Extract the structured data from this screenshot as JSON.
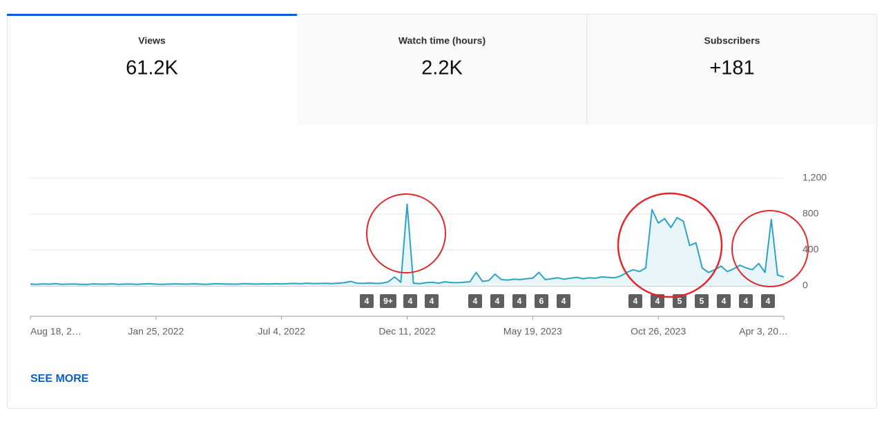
{
  "tabs": [
    {
      "label": "Views",
      "value": "61.2K"
    },
    {
      "label": "Watch time (hours)",
      "value": "2.2K"
    },
    {
      "label": "Subscribers",
      "value": "+181"
    }
  ],
  "chart_data": {
    "type": "line",
    "color": "#2aa3c7",
    "grid": true,
    "categories": [
      "Aug 18, 2…",
      null,
      null,
      null,
      null,
      null,
      null,
      null,
      null,
      null,
      null,
      null,
      null,
      null,
      null,
      null,
      null,
      null,
      null,
      null,
      "Jan 25, 2022",
      null,
      null,
      null,
      null,
      null,
      null,
      null,
      null,
      null,
      null,
      null,
      null,
      null,
      null,
      null,
      null,
      null,
      null,
      null,
      "Jul 4, 2022",
      null,
      null,
      null,
      null,
      null,
      null,
      null,
      null,
      null,
      null,
      null,
      null,
      null,
      null,
      null,
      null,
      null,
      null,
      null,
      "Dec 11, 2022",
      null,
      null,
      null,
      null,
      null,
      null,
      null,
      null,
      null,
      null,
      null,
      null,
      null,
      null,
      null,
      null,
      null,
      null,
      null,
      "May 19, 2023",
      null,
      null,
      null,
      null,
      null,
      null,
      null,
      null,
      null,
      null,
      null,
      null,
      null,
      null,
      null,
      null,
      null,
      null,
      null,
      "Oct 26, 2023",
      null,
      null,
      null,
      null,
      null,
      null,
      null,
      null,
      null,
      null,
      null,
      null,
      null,
      null,
      null,
      null,
      null,
      null,
      null,
      "Apr 3, 20…"
    ],
    "values": [
      20,
      18,
      22,
      19,
      25,
      17,
      20,
      21,
      18,
      16,
      22,
      20,
      19,
      23,
      18,
      20,
      21,
      17,
      22,
      24,
      19,
      18,
      20,
      22,
      21,
      19,
      23,
      20,
      18,
      22,
      24,
      21,
      20,
      19,
      25,
      22,
      20,
      23,
      21,
      24,
      22,
      25,
      28,
      24,
      30,
      26,
      27,
      29,
      25,
      31,
      35,
      50,
      30,
      28,
      32,
      27,
      30,
      45,
      100,
      40,
      910,
      30,
      25,
      35,
      40,
      30,
      45,
      38,
      35,
      40,
      45,
      150,
      50,
      60,
      130,
      70,
      65,
      75,
      70,
      80,
      85,
      150,
      70,
      80,
      90,
      75,
      85,
      95,
      80,
      90,
      85,
      100,
      95,
      90,
      110,
      150,
      180,
      160,
      200,
      850,
      700,
      750,
      650,
      760,
      720,
      450,
      480,
      200,
      150,
      180,
      220,
      160,
      190,
      230,
      200,
      180,
      250,
      150,
      740,
      120,
      100
    ],
    "ylim": [
      0,
      1200
    ],
    "yticks": [
      0,
      400,
      800,
      {
        "value": 1200,
        "label": "1,200"
      }
    ],
    "annotations": [
      "4",
      "9+",
      "4",
      "4",
      "4",
      "4",
      "4",
      "6",
      "4",
      "4",
      "4",
      "5",
      "5",
      "4",
      "4",
      "4"
    ]
  },
  "see_more": "SEE MORE"
}
